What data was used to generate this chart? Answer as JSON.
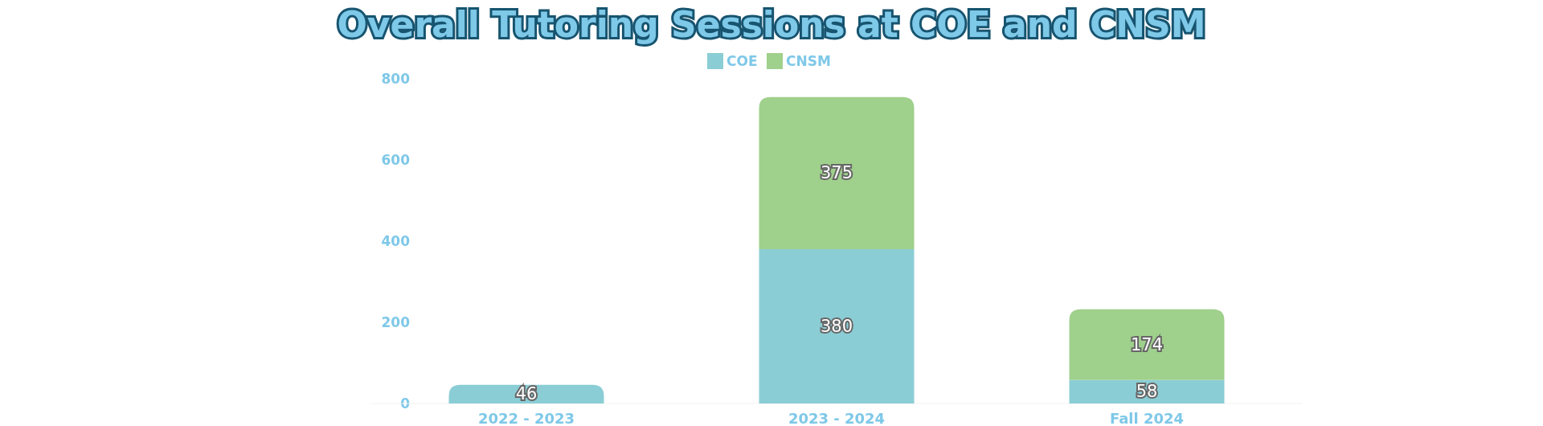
{
  "chart_data": {
    "type": "bar",
    "title": "Overall Tutoring Sessions at COE and CNSM",
    "categories": [
      "2022 - 2023",
      "2023 - 2024",
      "Fall 2024"
    ],
    "stacked": true,
    "series": [
      {
        "name": "COE",
        "color": "#8bcdd5",
        "values": [
          46,
          380,
          58
        ]
      },
      {
        "name": "CNSM",
        "color": "#9fd08c",
        "values": [
          null,
          375,
          174
        ]
      }
    ],
    "ylim": [
      0,
      800
    ],
    "yticks": [
      0,
      200,
      400,
      600,
      800
    ],
    "grid": false,
    "legend": "top",
    "data_labels": true
  }
}
